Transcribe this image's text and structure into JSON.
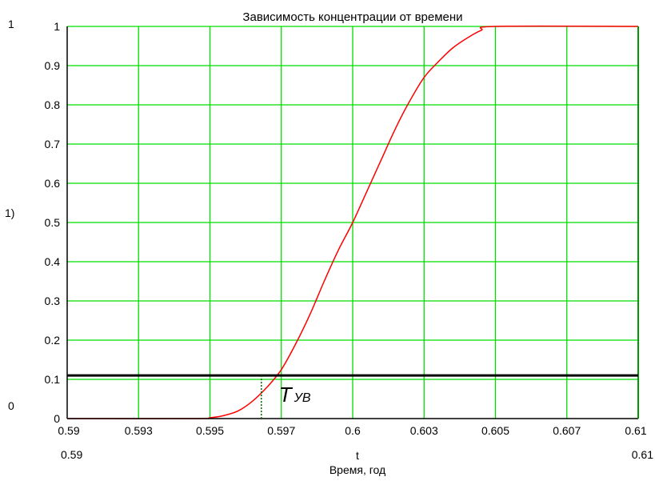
{
  "chart_data": {
    "type": "line",
    "title": "Зависимость концентрации от времени",
    "xlabel": "t",
    "xlabel_secondary": "Время, год",
    "ylabel": "1)",
    "x_range_labels": {
      "min": "0.59",
      "max": "0.61"
    },
    "y_range_labels": {
      "max": "1",
      "min": "0"
    },
    "xlim": [
      0.59,
      0.61
    ],
    "ylim": [
      0,
      1
    ],
    "x_ticks": [
      {
        "value": 0.59,
        "label": "0.59"
      },
      {
        "value": 0.5925,
        "label": "0.593"
      },
      {
        "value": 0.595,
        "label": "0.595"
      },
      {
        "value": 0.5975,
        "label": "0.597"
      },
      {
        "value": 0.6,
        "label": "0.6"
      },
      {
        "value": 0.6025,
        "label": "0.603"
      },
      {
        "value": 0.605,
        "label": "0.605"
      },
      {
        "value": 0.6075,
        "label": "0.607"
      },
      {
        "value": 0.61,
        "label": "0.61"
      }
    ],
    "y_ticks": [
      {
        "value": 0,
        "label": "0"
      },
      {
        "value": 0.1,
        "label": "0.1"
      },
      {
        "value": 0.2,
        "label": "0.2"
      },
      {
        "value": 0.3,
        "label": "0.3"
      },
      {
        "value": 0.4,
        "label": "0.4"
      },
      {
        "value": 0.5,
        "label": "0.5"
      },
      {
        "value": 0.6,
        "label": "0.6"
      },
      {
        "value": 0.7,
        "label": "0.7"
      },
      {
        "value": 0.8,
        "label": "0.8"
      },
      {
        "value": 0.9,
        "label": "0.9"
      },
      {
        "value": 1,
        "label": "1"
      }
    ],
    "grid": true,
    "colors": {
      "grid": "#00dd00",
      "curve": "#ff0000",
      "threshold": "#000000",
      "marker": "#006600",
      "axes": "#000000"
    },
    "series": [
      {
        "x": [
          0.59,
          0.5945,
          0.595,
          0.5955,
          0.596,
          0.5965,
          0.597,
          0.5975,
          0.598,
          0.5985,
          0.599,
          0.5995,
          0.6,
          0.6005,
          0.601,
          0.6015,
          0.602,
          0.6025,
          0.603,
          0.6035,
          0.604,
          0.6045,
          0.605,
          0.61
        ],
        "y": [
          0,
          0,
          0.002,
          0.008,
          0.02,
          0.045,
          0.08,
          0.125,
          0.19,
          0.265,
          0.35,
          0.43,
          0.5,
          0.58,
          0.66,
          0.74,
          0.81,
          0.87,
          0.91,
          0.945,
          0.97,
          0.99,
          1,
          1
        ]
      }
    ],
    "threshold": {
      "y": 0.11
    },
    "marker": {
      "x": 0.5968,
      "label_main": "T",
      "label_sub": "УВ"
    }
  }
}
